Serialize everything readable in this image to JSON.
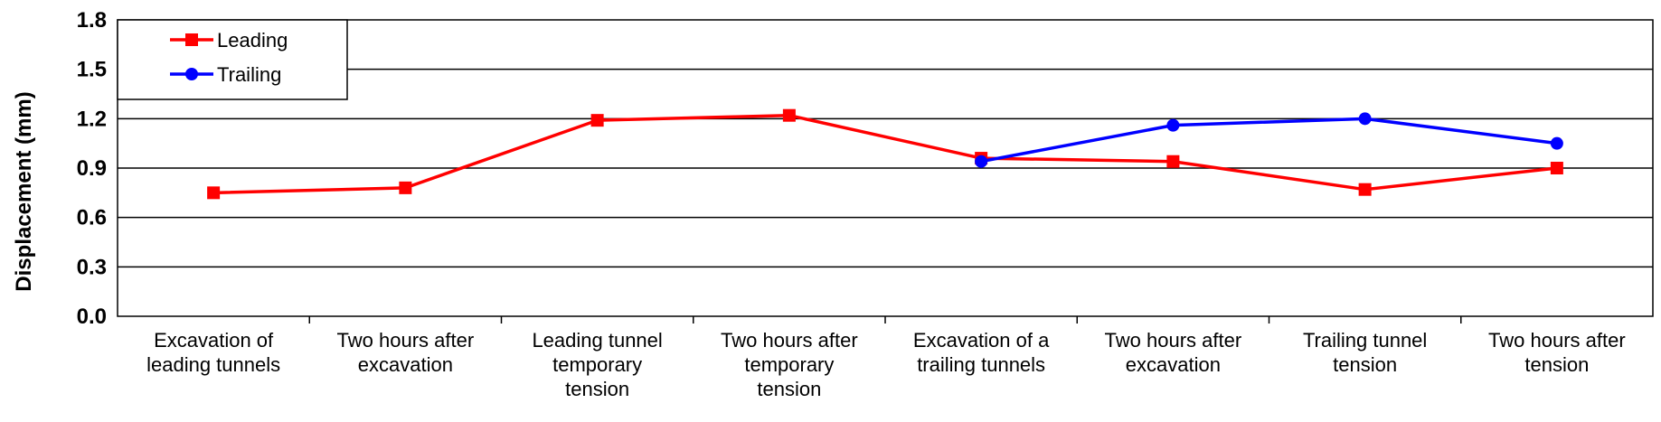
{
  "chart_data": {
    "type": "line",
    "categories": [
      [
        "Excavation of",
        "leading tunnels"
      ],
      [
        "Two hours after",
        "excavation"
      ],
      [
        "Leading tunnel",
        "temporary",
        "tension"
      ],
      [
        "Two hours after",
        "temporary",
        "tension"
      ],
      [
        "Excavation of a",
        "trailing tunnels"
      ],
      [
        "Two hours after",
        "excavation"
      ],
      [
        "Trailing tunnel",
        "tension"
      ],
      [
        "Two hours after",
        "tension"
      ]
    ],
    "series": [
      {
        "name": "Leading",
        "color": "#ff0000",
        "marker": "square",
        "values": [
          0.75,
          0.78,
          1.19,
          1.22,
          0.96,
          0.94,
          0.77,
          0.9
        ]
      },
      {
        "name": "Trailing",
        "color": "#0000ff",
        "marker": "circle",
        "values": [
          null,
          null,
          null,
          null,
          0.94,
          1.16,
          1.2,
          1.05
        ]
      }
    ],
    "ylabel": "Displacement (mm)",
    "xlabel": "",
    "ylim": [
      0.0,
      1.8
    ],
    "yticks": [
      "0.0",
      "0.3",
      "0.6",
      "0.9",
      "1.2",
      "1.5",
      "1.8"
    ],
    "grid": "horizontal",
    "legend_position": "top-left"
  }
}
